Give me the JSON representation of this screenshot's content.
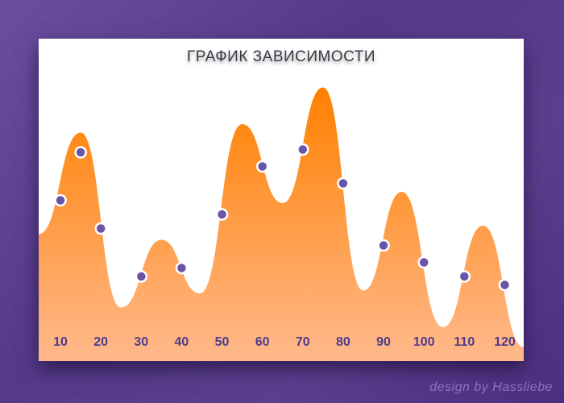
{
  "chart_data": {
    "type": "area",
    "title": "ГРАФИК ЗАВИСИМОСТИ",
    "xlabel": "",
    "ylabel": "",
    "xlim": [
      4.6,
      124.7
    ],
    "ylim": [
      0,
      100
    ],
    "grid": false,
    "x_ticks": [
      "10",
      "20",
      "30",
      "40",
      "50",
      "60",
      "70",
      "80",
      "90",
      "100",
      "110",
      "120"
    ],
    "curve": [
      [
        4.6,
        45
      ],
      [
        15,
        81
      ],
      [
        25,
        19
      ],
      [
        35,
        43
      ],
      [
        44.5,
        24
      ],
      [
        55,
        84
      ],
      [
        65,
        56
      ],
      [
        75,
        97
      ],
      [
        85,
        25
      ],
      [
        94.5,
        60
      ],
      [
        104.7,
        12
      ],
      [
        114.6,
        48
      ],
      [
        124.7,
        5
      ]
    ],
    "points": [
      [
        10,
        57
      ],
      [
        15,
        74
      ],
      [
        20,
        47
      ],
      [
        30,
        30
      ],
      [
        40,
        33
      ],
      [
        50,
        52
      ],
      [
        60,
        69
      ],
      [
        70,
        75
      ],
      [
        80,
        63
      ],
      [
        90,
        41
      ],
      [
        100,
        35
      ],
      [
        110,
        30
      ],
      [
        120,
        27
      ]
    ],
    "colors": {
      "fill_top": "#ff8000",
      "fill_bottom": "#ffb98c",
      "point": "#6a54a6",
      "tick": "#4e3c8c"
    }
  },
  "credit": "design by Hassliebe"
}
